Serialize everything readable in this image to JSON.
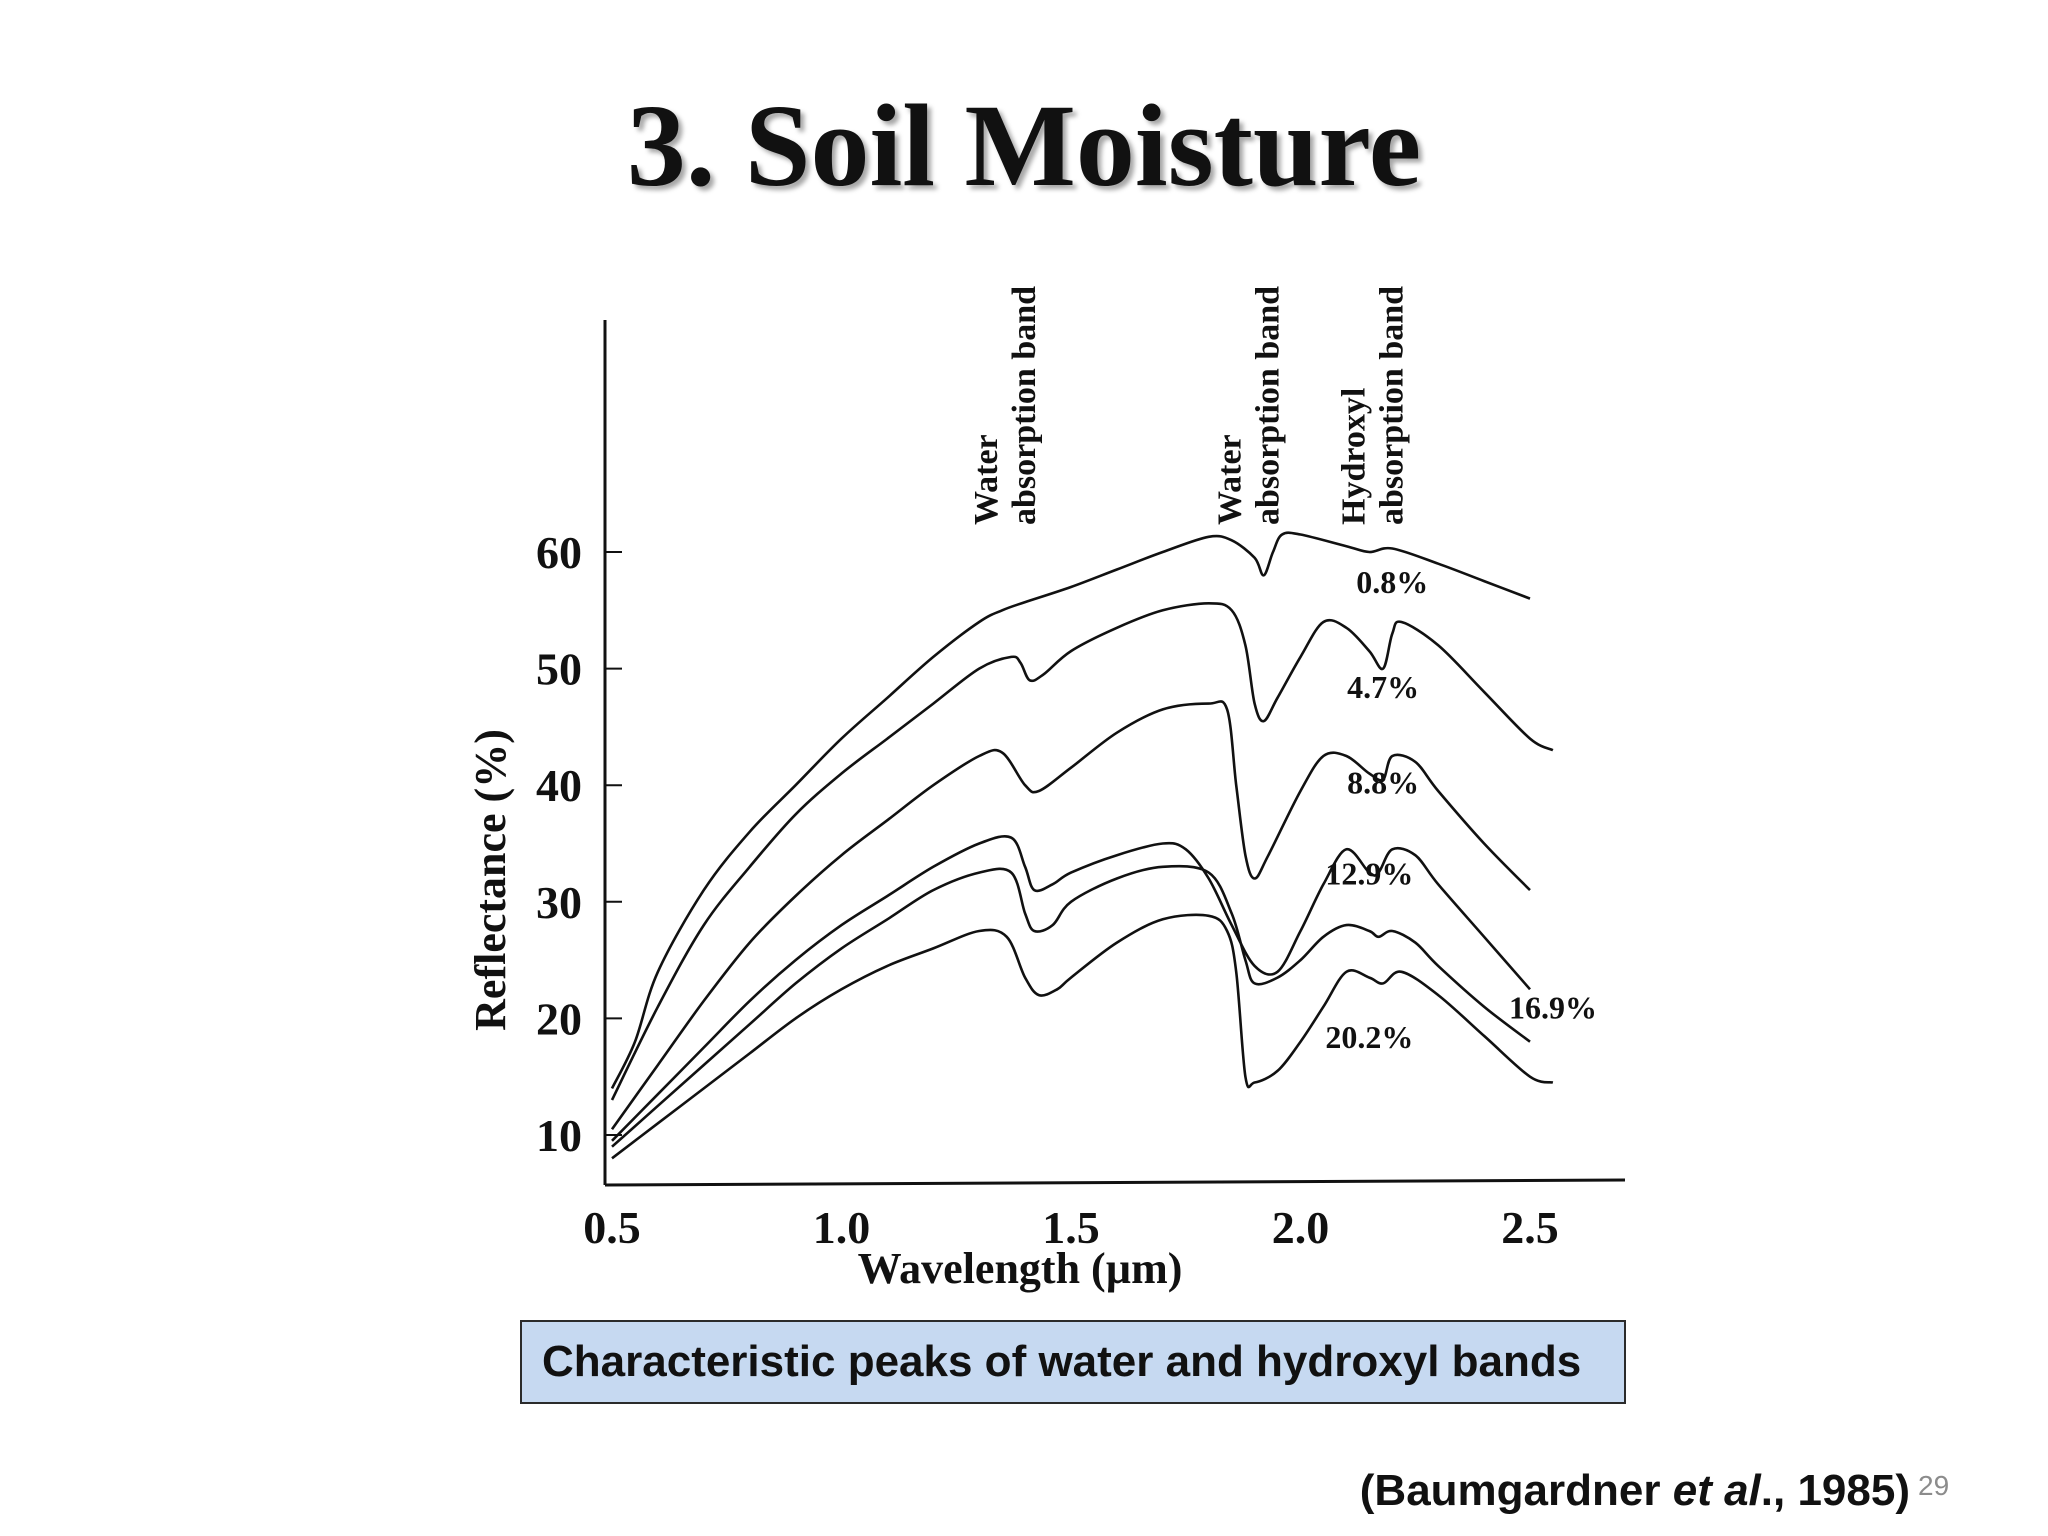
{
  "slide": {
    "title": "3. Soil Moisture",
    "caption": "Characteristic peaks of water and hydroxyl bands",
    "citation": {
      "open": "(Baumgardner ",
      "etal": "et al",
      "close": "., 1985)"
    },
    "page_number": "29"
  },
  "chart_data": {
    "type": "line",
    "xlabel": "Wavelength (µm)",
    "ylabel": "Reflectance (%)",
    "xlim": [
      0.5,
      2.7
    ],
    "ylim": [
      5,
      70
    ],
    "x_ticks": [
      "0.5",
      "1.0",
      "1.5",
      "2.0",
      "2.5"
    ],
    "y_ticks": [
      "10",
      "20",
      "30",
      "40",
      "50",
      "60"
    ],
    "grid": false,
    "band_annotations": [
      {
        "lines": [
          "Water",
          "absorption band"
        ],
        "x": 1.4
      },
      {
        "lines": [
          "Water",
          "absorption band"
        ],
        "x": 1.93
      },
      {
        "lines": [
          "Hydroxyl",
          "absorption band"
        ],
        "x": 2.2
      }
    ],
    "series": [
      {
        "name": "0.8%",
        "label_at": [
          2.2,
          57.5
        ],
        "points": [
          [
            0.5,
            14
          ],
          [
            0.55,
            18
          ],
          [
            0.6,
            24
          ],
          [
            0.7,
            31
          ],
          [
            0.8,
            36
          ],
          [
            0.9,
            40
          ],
          [
            1.0,
            44
          ],
          [
            1.1,
            47.5
          ],
          [
            1.2,
            51
          ],
          [
            1.3,
            54
          ],
          [
            1.35,
            55
          ],
          [
            1.4,
            55.7
          ],
          [
            1.5,
            57
          ],
          [
            1.6,
            58.5
          ],
          [
            1.7,
            60
          ],
          [
            1.8,
            61.3
          ],
          [
            1.85,
            61
          ],
          [
            1.9,
            59.5
          ],
          [
            1.92,
            58
          ],
          [
            1.94,
            60
          ],
          [
            1.96,
            61.5
          ],
          [
            2.0,
            61.5
          ],
          [
            2.1,
            60.5
          ],
          [
            2.15,
            60
          ],
          [
            2.2,
            60.3
          ],
          [
            2.3,
            59
          ],
          [
            2.4,
            57.5
          ],
          [
            2.5,
            56
          ]
        ]
      },
      {
        "name": "4.7%",
        "label_at": [
          2.18,
          48.5
        ],
        "points": [
          [
            0.5,
            13
          ],
          [
            0.6,
            21
          ],
          [
            0.7,
            28
          ],
          [
            0.8,
            33
          ],
          [
            0.9,
            37.5
          ],
          [
            1.0,
            41
          ],
          [
            1.1,
            44
          ],
          [
            1.2,
            47
          ],
          [
            1.3,
            50
          ],
          [
            1.37,
            51
          ],
          [
            1.39,
            50.5
          ],
          [
            1.41,
            49
          ],
          [
            1.44,
            49.5
          ],
          [
            1.5,
            51.5
          ],
          [
            1.6,
            53.5
          ],
          [
            1.7,
            55
          ],
          [
            1.8,
            55.6
          ],
          [
            1.85,
            55
          ],
          [
            1.88,
            52
          ],
          [
            1.9,
            47
          ],
          [
            1.92,
            45.5
          ],
          [
            1.95,
            47.5
          ],
          [
            2.0,
            51
          ],
          [
            2.05,
            54
          ],
          [
            2.1,
            53.5
          ],
          [
            2.15,
            51.5
          ],
          [
            2.18,
            50
          ],
          [
            2.2,
            53
          ],
          [
            2.22,
            54
          ],
          [
            2.3,
            52
          ],
          [
            2.4,
            48
          ],
          [
            2.5,
            44
          ],
          [
            2.55,
            43
          ]
        ]
      },
      {
        "name": "8.8%",
        "label_at": [
          2.18,
          40.3
        ],
        "points": [
          [
            0.5,
            10.5
          ],
          [
            0.6,
            16
          ],
          [
            0.7,
            21.5
          ],
          [
            0.8,
            26.5
          ],
          [
            0.9,
            30.5
          ],
          [
            1.0,
            34
          ],
          [
            1.1,
            37
          ],
          [
            1.2,
            40
          ],
          [
            1.3,
            42.5
          ],
          [
            1.35,
            42.8
          ],
          [
            1.4,
            40
          ],
          [
            1.43,
            39.5
          ],
          [
            1.5,
            41.5
          ],
          [
            1.6,
            44.5
          ],
          [
            1.7,
            46.5
          ],
          [
            1.8,
            47
          ],
          [
            1.84,
            46.5
          ],
          [
            1.86,
            40
          ],
          [
            1.88,
            34
          ],
          [
            1.9,
            32
          ],
          [
            1.93,
            34
          ],
          [
            2.0,
            39.5
          ],
          [
            2.05,
            42.5
          ],
          [
            2.1,
            42.5
          ],
          [
            2.15,
            41
          ],
          [
            2.18,
            40.5
          ],
          [
            2.2,
            42.5
          ],
          [
            2.25,
            42
          ],
          [
            2.3,
            39.5
          ],
          [
            2.4,
            35
          ],
          [
            2.5,
            31
          ]
        ]
      },
      {
        "name": "12.9%",
        "label_at": [
          2.15,
          32.5
        ],
        "points": [
          [
            0.5,
            9.5
          ],
          [
            0.6,
            13.5
          ],
          [
            0.7,
            17.5
          ],
          [
            0.8,
            21.5
          ],
          [
            0.9,
            25
          ],
          [
            1.0,
            28
          ],
          [
            1.1,
            30.5
          ],
          [
            1.2,
            33
          ],
          [
            1.3,
            35
          ],
          [
            1.37,
            35.5
          ],
          [
            1.4,
            33
          ],
          [
            1.42,
            31
          ],
          [
            1.46,
            31.5
          ],
          [
            1.5,
            32.5
          ],
          [
            1.6,
            34
          ],
          [
            1.7,
            35
          ],
          [
            1.75,
            34.5
          ],
          [
            1.8,
            32
          ],
          [
            1.85,
            28
          ],
          [
            1.9,
            24.5
          ],
          [
            1.95,
            24
          ],
          [
            2.0,
            27.5
          ],
          [
            2.05,
            31.5
          ],
          [
            2.1,
            34.5
          ],
          [
            2.15,
            32.5
          ],
          [
            2.17,
            32.5
          ],
          [
            2.2,
            34.5
          ],
          [
            2.25,
            34
          ],
          [
            2.3,
            31.5
          ],
          [
            2.4,
            27
          ],
          [
            2.5,
            22.5
          ]
        ]
      },
      {
        "name": "16.9%",
        "label_at": [
          2.55,
          21
        ],
        "points": [
          [
            0.5,
            9
          ],
          [
            0.6,
            12.5
          ],
          [
            0.7,
            16
          ],
          [
            0.8,
            19.5
          ],
          [
            0.9,
            23
          ],
          [
            1.0,
            26
          ],
          [
            1.1,
            28.5
          ],
          [
            1.2,
            31
          ],
          [
            1.3,
            32.5
          ],
          [
            1.37,
            32.5
          ],
          [
            1.4,
            29
          ],
          [
            1.42,
            27.5
          ],
          [
            1.46,
            28
          ],
          [
            1.5,
            30
          ],
          [
            1.6,
            32
          ],
          [
            1.7,
            33
          ],
          [
            1.8,
            32.5
          ],
          [
            1.85,
            29
          ],
          [
            1.88,
            25
          ],
          [
            1.9,
            23
          ],
          [
            1.95,
            23.5
          ],
          [
            2.0,
            25
          ],
          [
            2.05,
            27
          ],
          [
            2.1,
            28
          ],
          [
            2.15,
            27.5
          ],
          [
            2.17,
            27
          ],
          [
            2.2,
            27.5
          ],
          [
            2.25,
            26.5
          ],
          [
            2.3,
            24.5
          ],
          [
            2.4,
            21
          ],
          [
            2.5,
            18
          ]
        ]
      },
      {
        "name": "20.2%",
        "label_at": [
          2.15,
          18.5
        ],
        "points": [
          [
            0.5,
            8
          ],
          [
            0.6,
            11
          ],
          [
            0.7,
            14
          ],
          [
            0.8,
            17
          ],
          [
            0.9,
            20
          ],
          [
            1.0,
            22.5
          ],
          [
            1.1,
            24.5
          ],
          [
            1.2,
            26
          ],
          [
            1.3,
            27.5
          ],
          [
            1.36,
            27
          ],
          [
            1.4,
            23.5
          ],
          [
            1.43,
            22
          ],
          [
            1.47,
            22.5
          ],
          [
            1.5,
            23.5
          ],
          [
            1.6,
            26.5
          ],
          [
            1.7,
            28.5
          ],
          [
            1.8,
            28.8
          ],
          [
            1.84,
            27.5
          ],
          [
            1.86,
            24
          ],
          [
            1.88,
            15
          ],
          [
            1.9,
            14.5
          ],
          [
            1.95,
            15.5
          ],
          [
            2.0,
            18
          ],
          [
            2.05,
            21
          ],
          [
            2.1,
            24
          ],
          [
            2.15,
            23.5
          ],
          [
            2.18,
            23
          ],
          [
            2.22,
            24
          ],
          [
            2.3,
            22
          ],
          [
            2.4,
            18.5
          ],
          [
            2.5,
            15
          ],
          [
            2.55,
            14.5
          ]
        ]
      }
    ]
  }
}
